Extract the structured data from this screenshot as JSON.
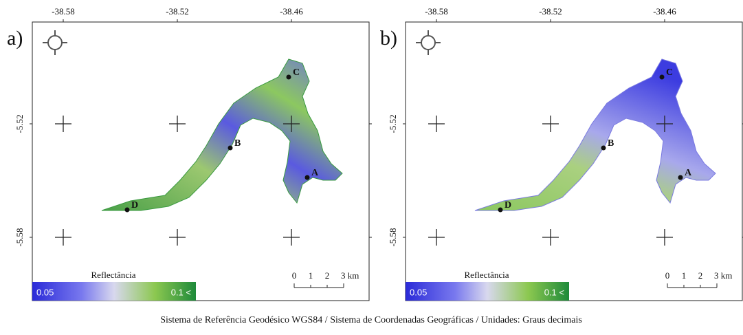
{
  "panels": [
    {
      "label": "a)",
      "x_ticks": [
        "-38.58",
        "-38.52",
        "-38.46"
      ],
      "y_ticks": [
        "-5.52",
        "-5.58"
      ],
      "points": [
        "A",
        "B",
        "C",
        "D"
      ],
      "legend": {
        "title": "Reflectância",
        "min": "0.05",
        "max": "0.1 <"
      },
      "scale": [
        "0",
        "1",
        "2",
        "3 km"
      ]
    },
    {
      "label": "b)",
      "x_ticks": [
        "-38.58",
        "-38.52",
        "-38.46"
      ],
      "y_ticks": [
        "-5.52",
        "-5.58"
      ],
      "points": [
        "A",
        "B",
        "C",
        "D"
      ],
      "legend": {
        "title": "Reflectância",
        "min": "0.05",
        "max": "0.1 <"
      },
      "scale": [
        "0",
        "1",
        "2",
        "3 km"
      ]
    }
  ],
  "footer": "Sistema de Referência Geodésico WGS84 / Sistema de Coordenadas Geográficas / Unidades: Graus decimais"
}
